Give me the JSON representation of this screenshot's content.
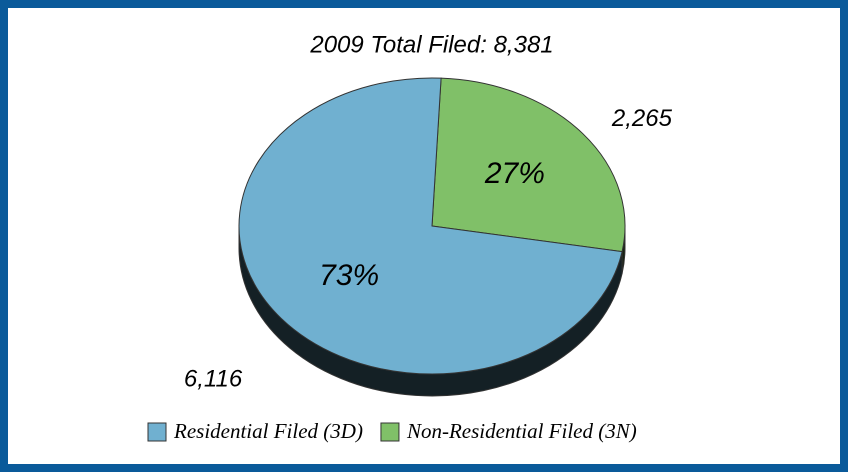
{
  "chart_data": {
    "type": "pie3d",
    "title": "2009 Total Filed: 8,381",
    "categories": [
      "Non-Residential Filed (3N)",
      "Residential Filed (3D)"
    ],
    "values": [
      2265,
      6116
    ],
    "value_labels": [
      "2,265",
      "6,116"
    ],
    "percentages": [
      27,
      73
    ],
    "percentage_labels": [
      "27%",
      "73%"
    ],
    "colors": [
      "#80c068",
      "#70b0d0"
    ],
    "legend_order": [
      1,
      0
    ],
    "legend": "bottom"
  }
}
